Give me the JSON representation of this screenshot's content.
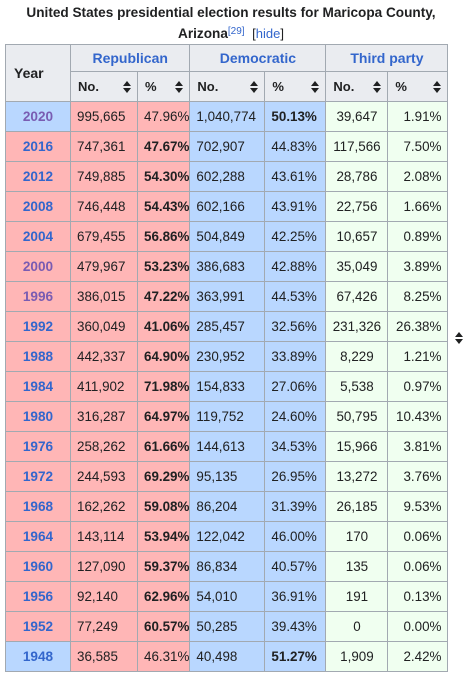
{
  "caption": {
    "title": "United States presidential election results for Maricopa County, Arizona",
    "ref": "[29]",
    "hide_open": "[",
    "hide_label": "hide",
    "hide_close": "]"
  },
  "headers": {
    "year": "Year",
    "republican": "Republican",
    "democratic": "Democratic",
    "third_party": "Third party",
    "no": "No.",
    "pct": "%"
  },
  "colors": {
    "republican": "#ffb6b6",
    "democratic": "#b9d7ff",
    "third_party": "#f0fff0",
    "link": "#3366cc"
  },
  "rows": [
    {
      "year": "2020",
      "rep_no": "995,665",
      "rep_pct": "47.96%",
      "dem_no": "1,040,774",
      "dem_pct": "50.13%",
      "third_no": "39,647",
      "third_pct": "1.91%",
      "winner": "dem"
    },
    {
      "year": "2016",
      "rep_no": "747,361",
      "rep_pct": "47.67%",
      "dem_no": "702,907",
      "dem_pct": "44.83%",
      "third_no": "117,566",
      "third_pct": "7.50%",
      "winner": "rep"
    },
    {
      "year": "2012",
      "rep_no": "749,885",
      "rep_pct": "54.30%",
      "dem_no": "602,288",
      "dem_pct": "43.61%",
      "third_no": "28,786",
      "third_pct": "2.08%",
      "winner": "rep"
    },
    {
      "year": "2008",
      "rep_no": "746,448",
      "rep_pct": "54.43%",
      "dem_no": "602,166",
      "dem_pct": "43.91%",
      "third_no": "22,756",
      "third_pct": "1.66%",
      "winner": "rep"
    },
    {
      "year": "2004",
      "rep_no": "679,455",
      "rep_pct": "56.86%",
      "dem_no": "504,849",
      "dem_pct": "42.25%",
      "third_no": "10,657",
      "third_pct": "0.89%",
      "winner": "rep"
    },
    {
      "year": "2000",
      "rep_no": "479,967",
      "rep_pct": "53.23%",
      "dem_no": "386,683",
      "dem_pct": "42.88%",
      "third_no": "35,049",
      "third_pct": "3.89%",
      "winner": "rep"
    },
    {
      "year": "1996",
      "rep_no": "386,015",
      "rep_pct": "47.22%",
      "dem_no": "363,991",
      "dem_pct": "44.53%",
      "third_no": "67,426",
      "third_pct": "8.25%",
      "winner": "rep"
    },
    {
      "year": "1992",
      "rep_no": "360,049",
      "rep_pct": "41.06%",
      "dem_no": "285,457",
      "dem_pct": "32.56%",
      "third_no": "231,326",
      "third_pct": "26.38%",
      "winner": "rep"
    },
    {
      "year": "1988",
      "rep_no": "442,337",
      "rep_pct": "64.90%",
      "dem_no": "230,952",
      "dem_pct": "33.89%",
      "third_no": "8,229",
      "third_pct": "1.21%",
      "winner": "rep"
    },
    {
      "year": "1984",
      "rep_no": "411,902",
      "rep_pct": "71.98%",
      "dem_no": "154,833",
      "dem_pct": "27.06%",
      "third_no": "5,538",
      "third_pct": "0.97%",
      "winner": "rep"
    },
    {
      "year": "1980",
      "rep_no": "316,287",
      "rep_pct": "64.97%",
      "dem_no": "119,752",
      "dem_pct": "24.60%",
      "third_no": "50,795",
      "third_pct": "10.43%",
      "winner": "rep"
    },
    {
      "year": "1976",
      "rep_no": "258,262",
      "rep_pct": "61.66%",
      "dem_no": "144,613",
      "dem_pct": "34.53%",
      "third_no": "15,966",
      "third_pct": "3.81%",
      "winner": "rep"
    },
    {
      "year": "1972",
      "rep_no": "244,593",
      "rep_pct": "69.29%",
      "dem_no": "95,135",
      "dem_pct": "26.95%",
      "third_no": "13,272",
      "third_pct": "3.76%",
      "winner": "rep"
    },
    {
      "year": "1968",
      "rep_no": "162,262",
      "rep_pct": "59.08%",
      "dem_no": "86,204",
      "dem_pct": "31.39%",
      "third_no": "26,185",
      "third_pct": "9.53%",
      "winner": "rep"
    },
    {
      "year": "1964",
      "rep_no": "143,114",
      "rep_pct": "53.94%",
      "dem_no": "122,042",
      "dem_pct": "46.00%",
      "third_no": "170",
      "third_pct": "0.06%",
      "winner": "rep"
    },
    {
      "year": "1960",
      "rep_no": "127,090",
      "rep_pct": "59.37%",
      "dem_no": "86,834",
      "dem_pct": "40.57%",
      "third_no": "135",
      "third_pct": "0.06%",
      "winner": "rep"
    },
    {
      "year": "1956",
      "rep_no": "92,140",
      "rep_pct": "62.96%",
      "dem_no": "54,010",
      "dem_pct": "36.91%",
      "third_no": "191",
      "third_pct": "0.13%",
      "winner": "rep"
    },
    {
      "year": "1952",
      "rep_no": "77,249",
      "rep_pct": "60.57%",
      "dem_no": "50,285",
      "dem_pct": "39.43%",
      "third_no": "0",
      "third_pct": "0.00%",
      "winner": "rep"
    },
    {
      "year": "1948",
      "rep_no": "36,585",
      "rep_pct": "46.31%",
      "dem_no": "40,498",
      "dem_pct": "51.27%",
      "third_no": "1,909",
      "third_pct": "2.42%",
      "winner": "dem"
    }
  ]
}
